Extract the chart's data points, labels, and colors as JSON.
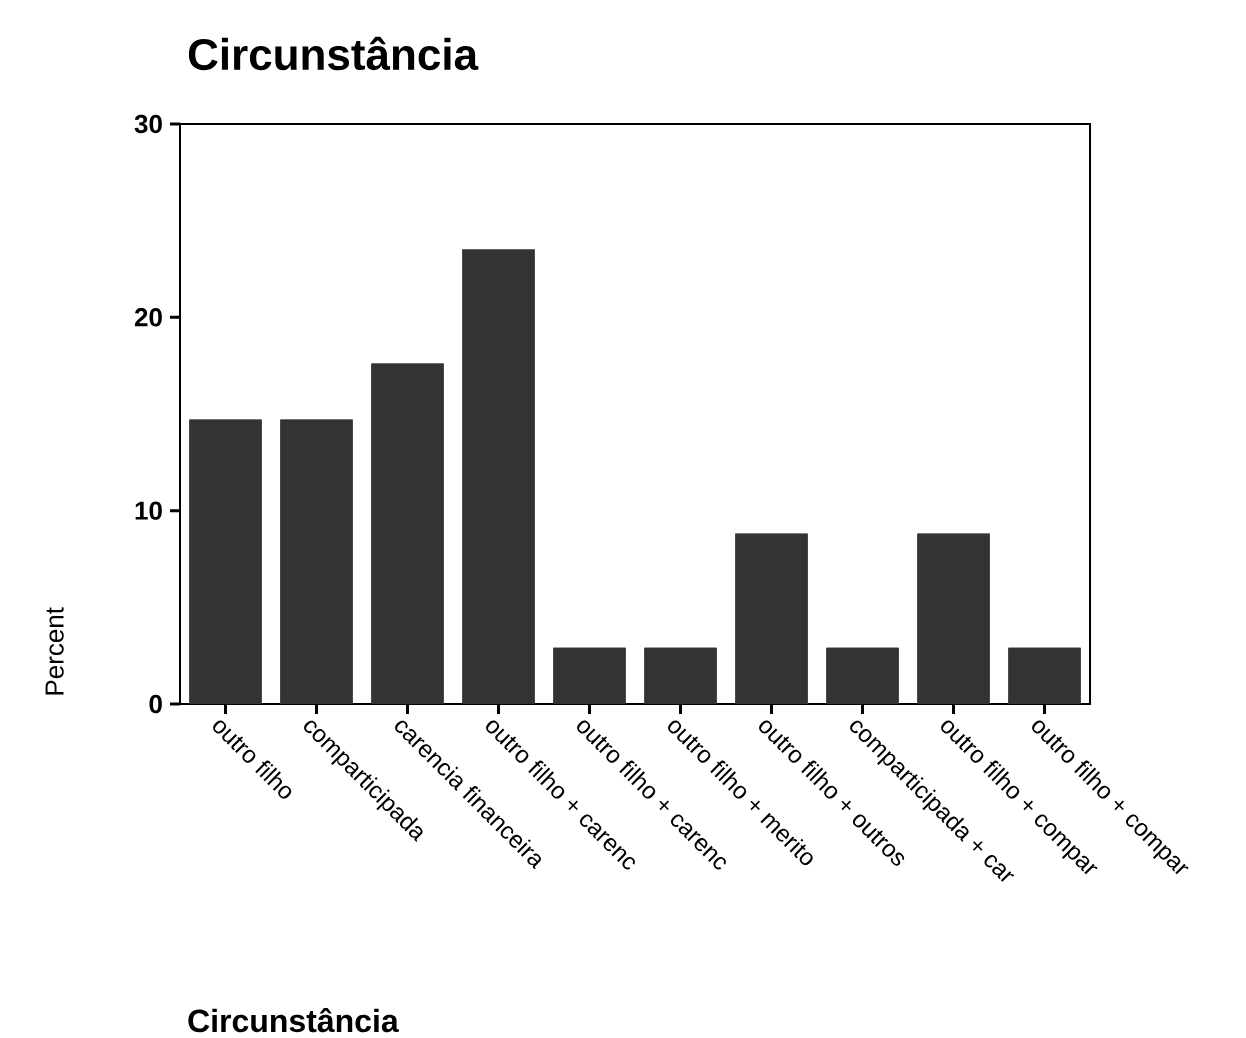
{
  "chart_data": {
    "type": "bar",
    "title": "Circunstância",
    "xlabel": "Circunstância",
    "ylabel": "Percent",
    "categories": [
      "outro filho",
      "comparticipada",
      "carencia financeira",
      "outro filho + carenc",
      "outro filho + carenc",
      "outro filho + merito",
      "outro filho + outros",
      "comparticipada + car",
      "outro filho + compar",
      "outro filho + compar"
    ],
    "values": [
      14.7,
      14.7,
      17.6,
      23.5,
      2.9,
      2.9,
      8.8,
      2.9,
      8.8,
      2.9
    ],
    "color": "#333333",
    "ylim": [
      0,
      30
    ],
    "yticks": [
      0,
      10,
      20,
      30
    ],
    "grid": false
  }
}
